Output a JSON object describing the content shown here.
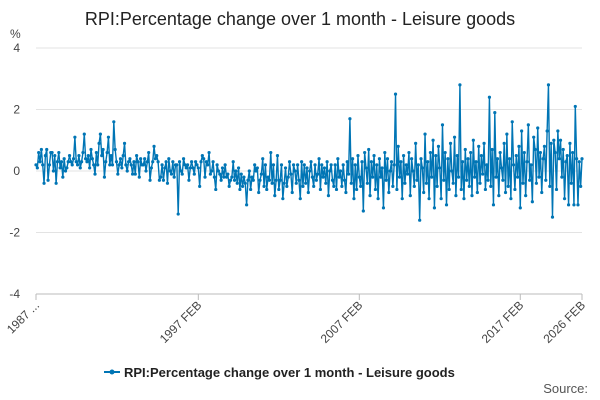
{
  "page": {
    "source_label": "Source:"
  },
  "chart_data": {
    "type": "line",
    "title": "RPI:Percentage change over 1 month - Leisure goods",
    "ylabel": "%",
    "xlabel": "",
    "ylim": [
      -4,
      4
    ],
    "y_ticks": [
      "4",
      "2",
      "0",
      "-2",
      "-4"
    ],
    "x_tick_labels": [
      "1987 ...",
      "1997 FEB",
      "2007 FEB",
      "2017 FEB",
      "2026 FEB"
    ],
    "x_range": [
      "1987 JAN",
      "2026 FEB"
    ],
    "grid": "horizontal",
    "legend_position": "bottom",
    "series": [
      {
        "name": "RPI:Percentage change over 1 month - Leisure goods",
        "color": "#0075b5",
        "values": [
          0.2,
          0.1,
          0.6,
          0.3,
          0.7,
          0.2,
          -0.4,
          0.5,
          0.7,
          -0.3,
          0.2,
          0.6,
          0.6,
          0.0,
          0.5,
          -0.4,
          0.3,
          0.6,
          0.1,
          0.3,
          -0.2,
          0.4,
          0.0,
          0.1,
          0.3,
          0.5,
          0.3,
          0.2,
          0.4,
          1.1,
          0.3,
          0.2,
          0.5,
          0.1,
          0.3,
          0.6,
          1.2,
          0.4,
          0.3,
          0.5,
          0.1,
          0.7,
          0.4,
          0.2,
          -0.1,
          0.6,
          0.2,
          0.9,
          1.2,
          0.5,
          0.7,
          -0.2,
          0.3,
          0.6,
          1.1,
          0.2,
          0.5,
          0.2,
          1.6,
          0.7,
          0.3,
          -0.1,
          0.2,
          0.4,
          0.1,
          0.5,
          0.9,
          0.2,
          0.0,
          0.3,
          0.4,
          0.2,
          -0.1,
          0.3,
          -0.1,
          0.5,
          0.3,
          -0.2,
          0.4,
          0.2,
          0.2,
          0.4,
          0.0,
          0.3,
          0.6,
          -0.3,
          0.1,
          0.3,
          0.8,
          0.4,
          0.5,
          0.3,
          -0.3,
          -0.2,
          0.2,
          -0.3,
          0.1,
          0.3,
          -0.4,
          0.4,
          0.0,
          -0.1,
          0.3,
          -0.2,
          0.2,
          0.2,
          -1.4,
          0.3,
          0.0,
          -0.1,
          0.4,
          0.2,
          0.1,
          0.2,
          -0.3,
          0.1,
          0.3,
          0.1,
          -0.1,
          0.3,
          0.2,
          0.1,
          -0.5,
          0.3,
          0.5,
          0.4,
          -0.2,
          0.3,
          0.2,
          0.6,
          -0.1,
          0.0,
          0.3,
          -0.2,
          -0.6,
          0.2,
          0.0,
          -0.1,
          -0.3,
          0.1,
          -0.2,
          0.2,
          -0.2,
          -0.1,
          -0.5,
          -0.3,
          -0.2,
          0.3,
          -0.3,
          0.0,
          -0.4,
          0.1,
          -0.6,
          -0.1,
          -0.5,
          -0.2,
          -0.4,
          -1.1,
          -0.3,
          0.0,
          -0.6,
          -0.2,
          -0.3,
          0.2,
          0.0,
          0.1,
          -0.7,
          -0.3,
          -0.1,
          0.4,
          -0.5,
          0.2,
          -0.6,
          -0.2,
          -0.3,
          0.6,
          -0.4,
          0.2,
          -0.8,
          -0.3,
          0.5,
          -0.6,
          -0.3,
          0.2,
          -0.9,
          -0.4,
          0.1,
          -0.5,
          -0.2,
          0.3,
          -0.1,
          -0.7,
          0.2,
          0.0,
          -0.4,
          0.2,
          -0.3,
          -0.9,
          0.3,
          -0.5,
          0.2,
          -0.4,
          0.1,
          -0.7,
          0.0,
          0.3,
          -0.2,
          -0.5,
          0.2,
          -0.3,
          -0.1,
          0.4,
          -0.6,
          0.2,
          -0.2,
          0.1,
          -0.4,
          0.3,
          -0.8,
          0.0,
          0.2,
          -0.3,
          -0.5,
          0.2,
          -0.6,
          0.4,
          -0.2,
          0.0,
          -0.5,
          0.2,
          -0.3,
          -0.7,
          0.3,
          -0.1,
          1.7,
          -0.4,
          0.4,
          -0.9,
          0.2,
          -0.6,
          0.5,
          -0.2,
          -0.5,
          0.3,
          -1.3,
          0.6,
          0.1,
          -0.4,
          0.7,
          -0.8,
          0.3,
          -0.2,
          0.5,
          -0.6,
          0.2,
          -0.9,
          0.4,
          -0.2,
          0.1,
          -1.2,
          0.6,
          -0.3,
          0.4,
          -0.7,
          0.0,
          0.3,
          -0.5,
          0.2,
          2.5,
          -0.6,
          0.8,
          -0.2,
          0.3,
          -0.9,
          0.5,
          -0.4,
          0.2,
          -0.1,
          0.6,
          -0.8,
          0.4,
          0.0,
          -0.5,
          0.9,
          -0.3,
          0.2,
          -1.6,
          0.4,
          0.1,
          -0.7,
          1.2,
          -0.4,
          0.3,
          -0.9,
          0.6,
          -0.2,
          1.0,
          -1.2,
          0.5,
          -0.5,
          0.8,
          0.1,
          -0.9,
          1.5,
          -0.3,
          0.6,
          -1.1,
          0.4,
          -0.6,
          0.9,
          0.0,
          -0.4,
          1.1,
          -0.8,
          0.5,
          -0.2,
          2.8,
          -0.6,
          0.3,
          -0.9,
          0.7,
          -0.3,
          0.4,
          -0.5,
          0.6,
          -0.8,
          1.0,
          -0.2,
          0.3,
          -0.7,
          0.8,
          -0.4,
          0.5,
          -0.1,
          0.9,
          -0.6,
          0.2,
          -0.3,
          2.4,
          -0.5,
          0.7,
          -1.1,
          1.9,
          -0.2,
          0.4,
          -0.8,
          0.6,
          0.1,
          -0.3,
          0.9,
          -0.7,
          1.2,
          -0.5,
          0.4,
          -0.9,
          1.6,
          0.2,
          -0.6,
          0.5,
          -0.2,
          0.8,
          -1.2,
          1.3,
          -0.4,
          0.6,
          -0.8,
          0.3,
          1.5,
          -0.3,
          0.2,
          -1.0,
          1.1,
          0.7,
          -0.4,
          1.4,
          -0.2,
          0.6,
          -0.7,
          0.4,
          0.8,
          -0.3,
          1.3,
          2.8,
          -0.5,
          0.9,
          -1.5,
          1.0,
          0.6,
          -0.6,
          1.3,
          0.4,
          1.0,
          -0.2,
          0.7,
          -0.9,
          0.3,
          0.5,
          -1.1,
          0.9,
          -0.4,
          0.6,
          -1.1,
          2.1,
          0.4,
          -1.1,
          0.3,
          -0.5,
          0.4
        ]
      }
    ]
  }
}
